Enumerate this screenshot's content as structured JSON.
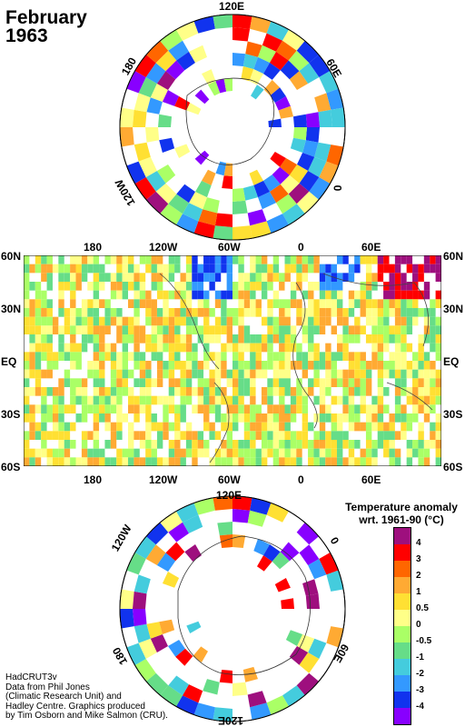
{
  "title": {
    "line1": "February",
    "line2": "1963"
  },
  "north_pole_labels": {
    "top": "120E",
    "left": "180",
    "right": "60E",
    "lower_left": "120W",
    "lower_right": "0"
  },
  "map_lon_labels": [
    "180",
    "120W",
    "60W",
    "0",
    "60E"
  ],
  "map_lat_labels_left": [
    "60N",
    "30N",
    "EQ",
    "30S",
    "60S"
  ],
  "map_lat_labels_right": [
    "60N",
    "30N",
    "EQ",
    "30S",
    "60S"
  ],
  "south_pole_labels": {
    "top": "120E",
    "left": "120W",
    "right": "0",
    "lower_left": "180",
    "lower_right": "60E",
    "bottom": "120E"
  },
  "legend": {
    "title_line1": "Temperature anomaly",
    "title_line2": "wrt. 1961-90  (°C)",
    "labels": [
      "4",
      "3",
      "2",
      "1",
      "0.5",
      "0",
      "-0.5",
      "-1",
      "-2",
      "-3",
      "-4"
    ],
    "colors": [
      "#9e0f7e",
      "#ff0000",
      "#ff6600",
      "#ffaa33",
      "#ffe033",
      "#ffff88",
      "#aaff66",
      "#66dd88",
      "#44ccdd",
      "#3399ff",
      "#1133ee",
      "#8800ff"
    ]
  },
  "credits": [
    "HadCRUT3v",
    "Data from Phil Jones",
    "(Climatic Research Unit) and",
    "Hadley Centre.  Graphics produced",
    "by Tim Osborn and Mike Salmon (CRU)."
  ]
}
